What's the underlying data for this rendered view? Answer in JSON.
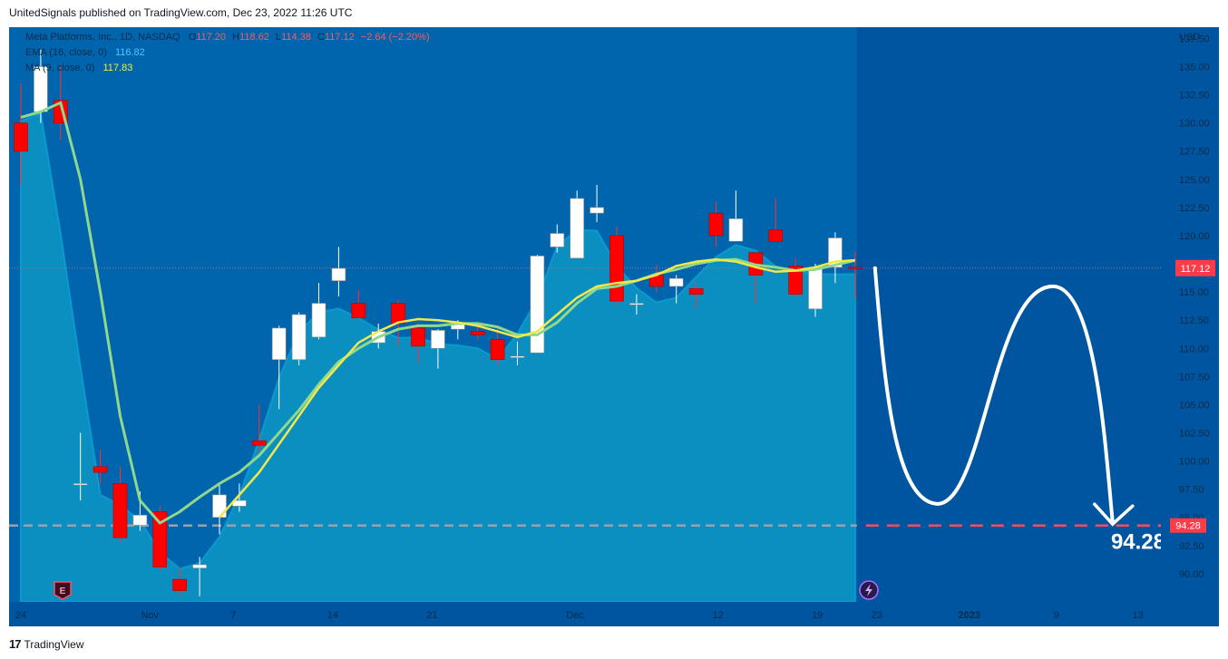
{
  "publisher_caption": "UnitedSignals published on TradingView.com, Dec 23, 2022 11:26 UTC",
  "footer": {
    "logo": "17",
    "brand": "TradingView"
  },
  "legend": {
    "symbol": "Meta Platforms, Inc., 1D, NASDAQ",
    "o_label": "O",
    "o_value": "117.20",
    "h_label": "H",
    "h_value": "118.62",
    "l_label": "L",
    "l_value": "114.38",
    "c_label": "C",
    "c_value": "117.12",
    "change": "−2.64 (−2.20%)",
    "ema_label": "EMA (16, close, 0)",
    "ema_value": "116.82",
    "ma_label": "MA (9, close, 0)",
    "ma_value": "117.83"
  },
  "colors": {
    "background": "#0055a0",
    "area": "#0a8fc0",
    "ma_line": "#f2e84b",
    "ema_line": "#8fd88c",
    "up_candle": "#ffffff",
    "down_candle": "#ff0000",
    "level_line": "#ff4d5e",
    "price_label": "#ff3b4a"
  },
  "icons": {
    "earnings": "earnings-e-icon",
    "dividend": "lightning-icon"
  },
  "chart_data": {
    "type": "candlestick",
    "y_axis_unit": "USD",
    "ylim": [
      87.5,
      138.5
    ],
    "y_ticks": [
      "137.50",
      "135.00",
      "132.50",
      "130.00",
      "127.50",
      "125.00",
      "122.50",
      "120.00",
      "117.50",
      "115.00",
      "112.50",
      "110.00",
      "107.50",
      "105.00",
      "102.50",
      "100.00",
      "97.50",
      "95.00",
      "92.50",
      "90.00"
    ],
    "x_tick_labels": [
      "24",
      "Nov",
      "7",
      "14",
      "21",
      "Dec",
      "12",
      "19",
      "23",
      "2023",
      "9",
      "13"
    ],
    "current_price_label": "117.12",
    "target_price_label": "94.28",
    "target_price_annotation": "94.28",
    "target_level": 94.28,
    "current_level": 117.12,
    "candles": [
      [
        130.0,
        133.5,
        124.5,
        127.5
      ],
      [
        131.0,
        136.5,
        130.0,
        135.0
      ],
      [
        132.0,
        135.0,
        128.5,
        130.0
      ],
      [
        98.0,
        102.5,
        96.5,
        98.0
      ],
      [
        99.5,
        101.0,
        98.0,
        99.0
      ],
      [
        98.0,
        99.5,
        92.8,
        93.2
      ],
      [
        94.3,
        97.3,
        93.8,
        95.2
      ],
      [
        95.5,
        96.0,
        90.2,
        90.6
      ],
      [
        89.5,
        90.5,
        88.0,
        88.5
      ],
      [
        90.5,
        91.5,
        88.0,
        90.8
      ],
      [
        95.0,
        98.0,
        93.5,
        97.0
      ],
      [
        96.0,
        98.0,
        95.5,
        96.5
      ],
      [
        101.8,
        105.0,
        100.8,
        101.4
      ],
      [
        109.0,
        112.0,
        104.6,
        111.8
      ],
      [
        109.0,
        113.2,
        108.5,
        113.0
      ],
      [
        111.0,
        115.8,
        110.8,
        114.0
      ],
      [
        116.0,
        119.0,
        114.6,
        117.1
      ],
      [
        114.0,
        115.2,
        112.7,
        112.7
      ],
      [
        110.5,
        112.2,
        110.0,
        111.5
      ],
      [
        114.0,
        114.3,
        110.2,
        112.2
      ],
      [
        111.8,
        112.3,
        108.7,
        110.2
      ],
      [
        110.0,
        111.7,
        108.2,
        111.6
      ],
      [
        111.7,
        112.5,
        110.8,
        112.2
      ],
      [
        111.5,
        112.0,
        110.8,
        111.2
      ],
      [
        110.8,
        112.0,
        108.5,
        109.0
      ],
      [
        109.3,
        110.6,
        108.5,
        109.3
      ],
      [
        109.6,
        118.3,
        109.6,
        118.2
      ],
      [
        119.0,
        121.0,
        118.5,
        120.2
      ],
      [
        118.0,
        124.0,
        118.0,
        123.3
      ],
      [
        122.0,
        124.5,
        121.2,
        122.5
      ],
      [
        120.0,
        120.8,
        113.8,
        114.2
      ],
      [
        114.0,
        114.8,
        113.0,
        114.0
      ],
      [
        116.5,
        117.4,
        115.0,
        115.5
      ],
      [
        115.5,
        116.5,
        114.0,
        116.2
      ],
      [
        115.3,
        115.8,
        113.5,
        114.8
      ],
      [
        122.0,
        123.0,
        119.0,
        120.0
      ],
      [
        119.5,
        124.0,
        119.5,
        121.5
      ],
      [
        118.5,
        118.5,
        114.0,
        116.5
      ],
      [
        120.5,
        123.3,
        119.5,
        119.5
      ],
      [
        117.3,
        118.0,
        114.5,
        114.8
      ],
      [
        113.5,
        117.5,
        112.8,
        117.2
      ],
      [
        117.2,
        120.3,
        115.8,
        119.8
      ],
      [
        117.2,
        118.6,
        114.4,
        117.1
      ]
    ],
    "ma_9": [
      null,
      117.4,
      117.6,
      117.7,
      117.8,
      118.0,
      118.2,
      118.5,
      118.8,
      119.0,
      119.2,
      119.2,
      119.4,
      119.5,
      119.7,
      119.6,
      119.8,
      119.9,
      119.8,
      120.0,
      119.9,
      120.1,
      120.0,
      120.2,
      119.9,
      119.6,
      119.2,
      118.6,
      118.0,
      117.5,
      116.6,
      116.0,
      115.7,
      115.3,
      115.1,
      114.9,
      115.0,
      115.3,
      115.5,
      115.8,
      116.3,
      117.0,
      117.83
    ],
    "ema_16": [
      119.0,
      119.2,
      119.3,
      119.5,
      119.6,
      119.7,
      119.8,
      119.9,
      119.8,
      119.7,
      119.5,
      119.6,
      119.6,
      119.5,
      119.4,
      119.3,
      119.2,
      119.0,
      118.8,
      118.6,
      118.4,
      118.1,
      117.9,
      117.6,
      117.3,
      117.0,
      116.8,
      116.4,
      116.2,
      115.9,
      115.6,
      115.4,
      115.2,
      115.1,
      115.0,
      115.2,
      115.4,
      115.5,
      115.6,
      116.0,
      116.4,
      116.6,
      116.82
    ],
    "ma_9_early": [
      130.7,
      131.8,
      122.0,
      100.0,
      95.2,
      94.5,
      95.0,
      97.5,
      101.0,
      104.5,
      107.5,
      109.5,
      110.5,
      111.0,
      111.2,
      111.5,
      112.5,
      112.7,
      112.5,
      111.0,
      111.8,
      113.5,
      115.5,
      115.8,
      116.5,
      117.7,
      118.0,
      117.8,
      117.0,
      117.2,
      117.8,
      117.83
    ]
  }
}
